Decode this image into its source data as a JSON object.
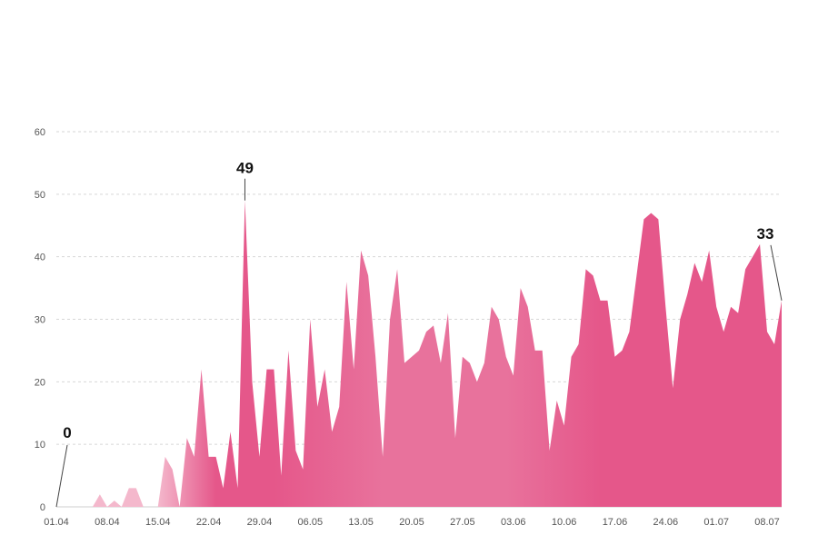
{
  "chart_data": {
    "type": "area",
    "title": "",
    "xlabel": "",
    "ylabel": "",
    "ylim": [
      0,
      60
    ],
    "grid": true,
    "legend": "none",
    "y_ticks": [
      "0",
      "10",
      "20",
      "30",
      "40",
      "50",
      "60"
    ],
    "x_tick_labels": [
      "01.04",
      "08.04",
      "15.04",
      "22.04",
      "29.04",
      "06.05",
      "13.05",
      "20.05",
      "27.05",
      "03.06",
      "10.06",
      "17.06",
      "24.06",
      "01.07",
      "08.07"
    ],
    "series": [
      {
        "values": [
          0,
          0,
          0,
          0,
          0,
          0,
          2,
          0,
          1,
          0,
          3,
          3,
          0,
          0,
          0,
          8,
          6,
          0,
          11,
          8,
          22,
          8,
          8,
          3,
          12,
          3,
          49,
          20,
          8,
          22,
          22,
          5,
          25,
          9,
          6,
          30,
          16,
          22,
          12,
          16,
          36,
          22,
          41,
          37,
          24,
          8,
          30,
          38,
          23,
          24,
          25,
          28,
          29,
          23,
          31,
          11,
          24,
          23,
          20,
          23,
          32,
          30,
          24,
          21,
          35,
          32,
          25,
          25,
          9,
          17,
          13,
          24,
          26,
          38,
          37,
          33,
          33,
          24,
          25,
          28,
          37,
          46,
          47,
          46,
          32,
          19,
          30,
          34,
          39,
          36,
          41,
          32,
          28,
          32,
          31,
          38,
          40,
          42,
          28,
          26,
          33
        ]
      }
    ],
    "annotations": [
      {
        "text": "0",
        "x_index": 0
      },
      {
        "text": "49",
        "x_index": 26
      },
      {
        "text": "33",
        "x_index": 100
      }
    ],
    "colors": {
      "area_main": "#e5578a",
      "area_light": "#f4b8cc",
      "area_mid": "#e8729c"
    }
  }
}
